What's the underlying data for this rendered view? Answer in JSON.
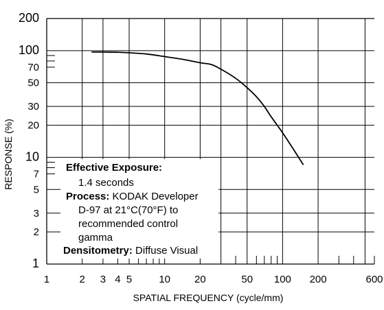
{
  "chart_data": {
    "type": "line",
    "title": "",
    "xlabel": "SPATIAL FREQUENCY (cycle/mm)",
    "ylabel": "RESPONSE (%)",
    "x_scale": "log",
    "y_scale": "log",
    "xlim": [
      1,
      600
    ],
    "ylim": [
      1,
      200
    ],
    "x_ticks": [
      1,
      2,
      3,
      4,
      5,
      10,
      20,
      50,
      100,
      200,
      600
    ],
    "x_tick_labels": [
      "1",
      "2",
      "3",
      "4",
      "5",
      "10",
      "20",
      "50",
      "100",
      "200",
      "600"
    ],
    "y_ticks": [
      1,
      2,
      3,
      5,
      7,
      10,
      20,
      30,
      50,
      70,
      100,
      200
    ],
    "y_tick_labels": [
      "1",
      "2",
      "3",
      "5",
      "7",
      "10",
      "20",
      "30",
      "50",
      "70",
      "100",
      "200"
    ],
    "grid": true,
    "legend": "none",
    "series": [
      {
        "x": [
          2.4,
          3,
          4,
          5,
          7,
          10,
          15,
          20,
          25,
          30,
          40,
          50,
          60,
          70,
          80,
          100,
          120,
          150
        ],
        "y": [
          97,
          97,
          96.5,
          95.5,
          93,
          88,
          82,
          77,
          74,
          67,
          55,
          45,
          37,
          30,
          24,
          17,
          12.5,
          8.5
        ]
      }
    ],
    "annotations": [
      {
        "label": "Effective Exposure:",
        "text": ""
      },
      {
        "label": "",
        "text": "1.4 seconds"
      },
      {
        "label": "Process:",
        "text": "KODAK Developer"
      },
      {
        "label": "",
        "text": "D-97 at 21°C(70°F) to"
      },
      {
        "label": "",
        "text": "recommended control"
      },
      {
        "label": "",
        "text": "gamma"
      },
      {
        "label": "Densitometry:",
        "text": "Diffuse Visual"
      }
    ],
    "line_color": "#000000",
    "grid_color": "#000000"
  }
}
